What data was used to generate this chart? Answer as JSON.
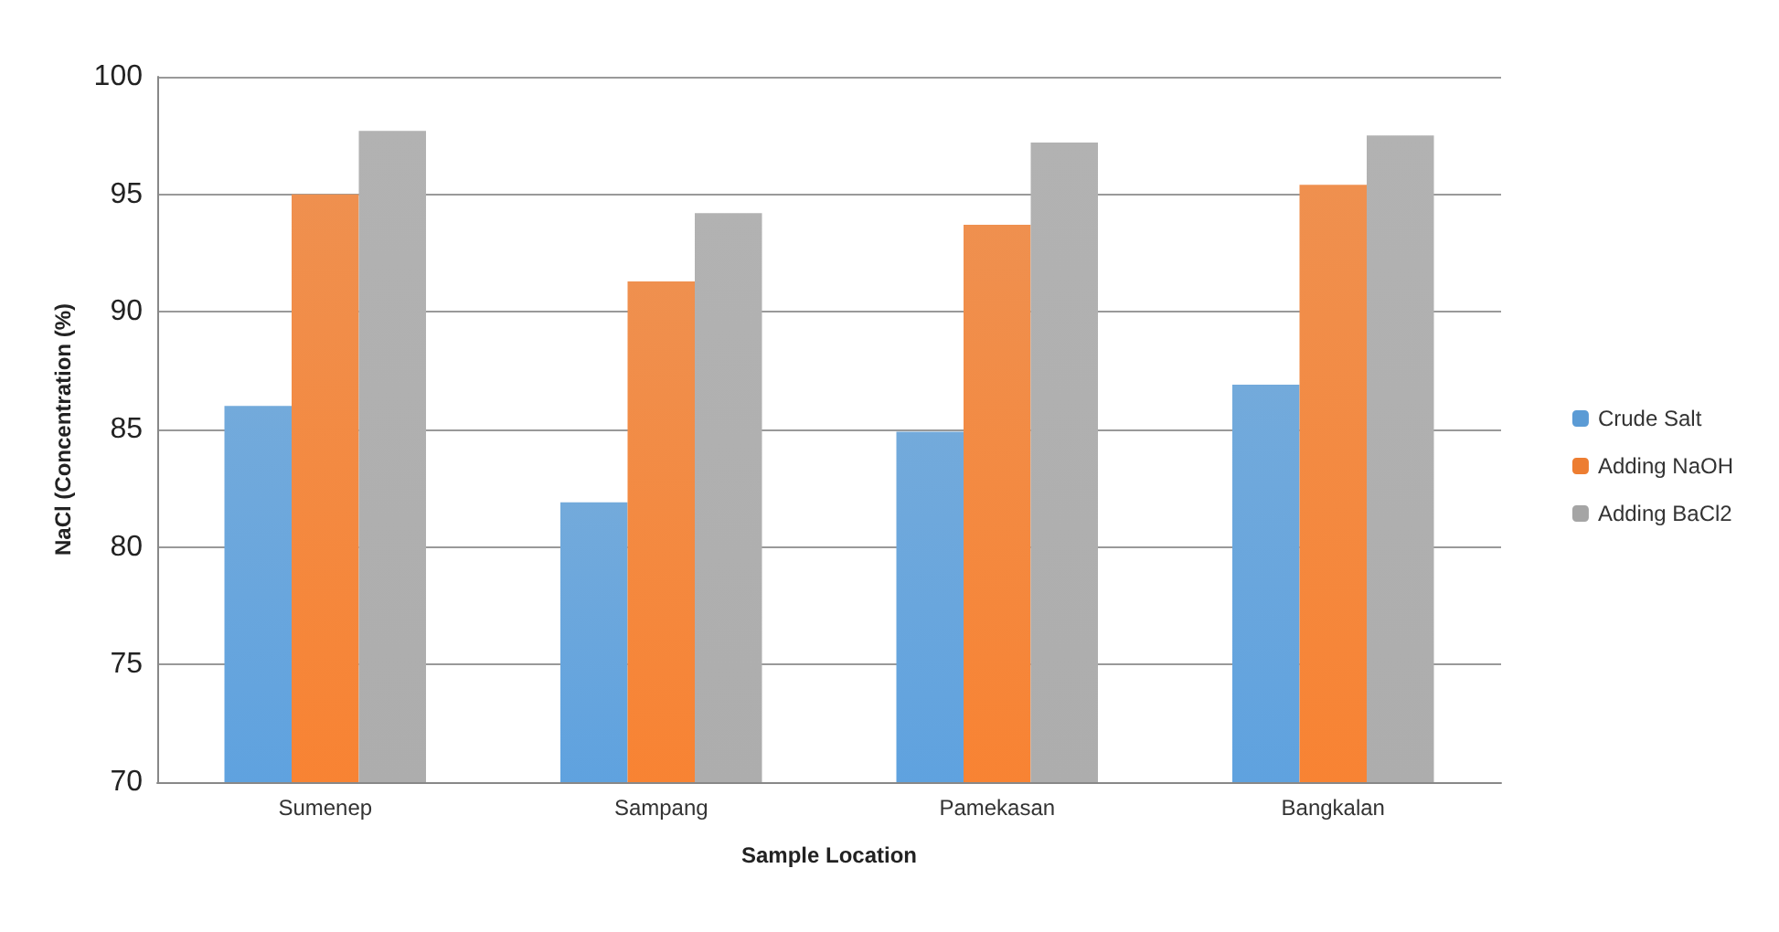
{
  "chart_data": {
    "type": "bar",
    "xlabel": "Sample Location",
    "ylabel": "NaCl (Concentration (%)",
    "categories": [
      "Sumenep",
      "Sampang",
      "Pamekasan",
      "Bangkalan"
    ],
    "series": [
      {
        "name": "Crude Salt",
        "color": "#5b9bd5",
        "values": [
          86.0,
          81.9,
          84.9,
          86.9
        ]
      },
      {
        "name": "Adding NaOH",
        "color": "#ed7d31",
        "values": [
          95.0,
          91.3,
          93.7,
          95.4
        ]
      },
      {
        "name": "Adding BaCl2",
        "color": "#a5a5a5",
        "values": [
          97.7,
          94.2,
          97.2,
          97.5
        ]
      }
    ],
    "ylim": [
      70,
      100
    ],
    "yticks": [
      70,
      75,
      80,
      85,
      90,
      95,
      100
    ],
    "grid": "y",
    "legend": "right"
  }
}
